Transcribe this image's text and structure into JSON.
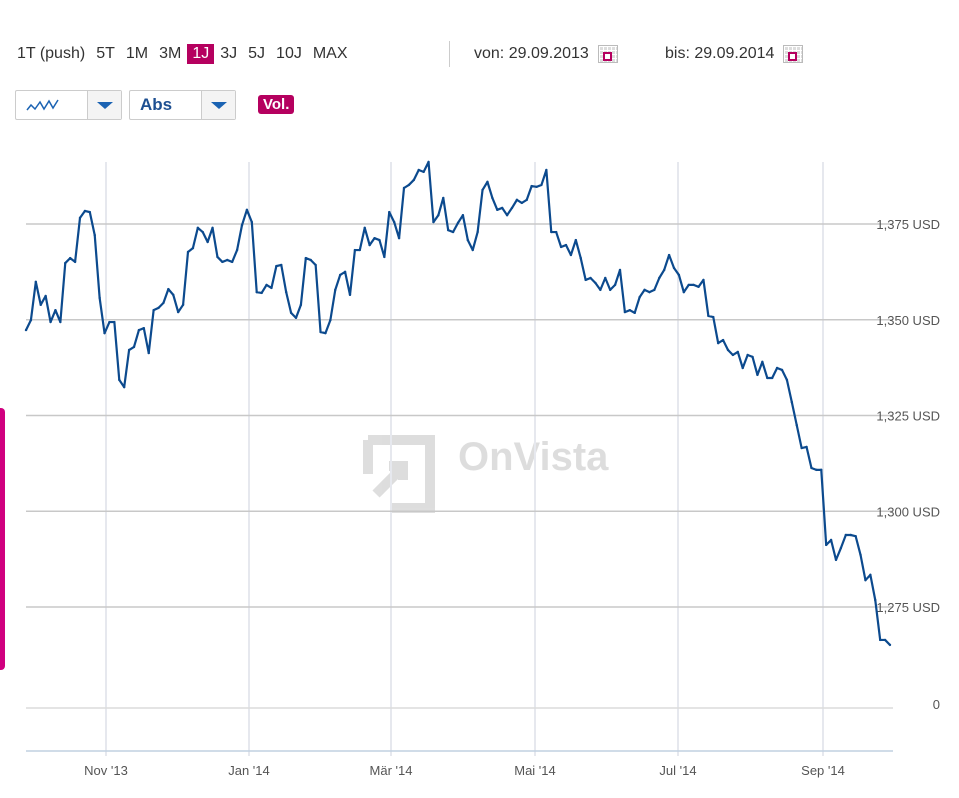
{
  "toolbar": {
    "ranges": [
      "1T (push)",
      "5T",
      "1M",
      "3M",
      "1J",
      "3J",
      "5J",
      "10J",
      "MAX"
    ],
    "active_range": "1J",
    "from_label": "von:",
    "from_date": "29.09.2013",
    "to_label": "bis:",
    "to_date": "29.09.2014",
    "chart_type_icon": "line-chart-icon",
    "mode_label": "Abs",
    "volume_label": "Vol.",
    "accent": "#b5005f"
  },
  "watermark": "OnVista",
  "chart_data": {
    "type": "line",
    "x_range": [
      "29.09.2013",
      "29.09.2014"
    ],
    "xticks": [
      "Nov '13",
      "Jan '14",
      "Mär '14",
      "Mai '14",
      "Jul '14",
      "Sep '14"
    ],
    "yticks": [
      {
        "value": 1375,
        "label": "1,375 USD"
      },
      {
        "value": 1350,
        "label": "1,350 USD"
      },
      {
        "value": 1325,
        "label": "1,325 USD"
      },
      {
        "value": 1300,
        "label": "1,300 USD"
      },
      {
        "value": 1275,
        "label": "1,275 USD"
      }
    ],
    "volume_zero_label": "0",
    "grid": true,
    "line_color": "#0c4a8e",
    "series": [
      {
        "values": [
          1347.3,
          1349.9,
          1359.9,
          1353.9,
          1356.2,
          1349.4,
          1352.5,
          1349.4,
          1364.8,
          1366.1,
          1365.1,
          1376.6,
          1378.4,
          1378.1,
          1372.1,
          1355.7,
          1346.5,
          1349.4,
          1349.4,
          1334.3,
          1332.4,
          1342.1,
          1342.9,
          1347.3,
          1347.8,
          1341.3,
          1352.5,
          1353.1,
          1354.4,
          1358.0,
          1356.5,
          1352.0,
          1353.9,
          1367.7,
          1368.7,
          1374.0,
          1372.9,
          1370.3,
          1374.0,
          1366.4,
          1365.1,
          1365.6,
          1365.1,
          1368.2,
          1374.7,
          1378.7,
          1375.5,
          1357.2,
          1357.0,
          1359.1,
          1358.3,
          1364.0,
          1364.3,
          1357.2,
          1351.8,
          1350.5,
          1353.9,
          1366.1,
          1365.6,
          1364.3,
          1346.8,
          1346.5,
          1349.9,
          1357.8,
          1361.7,
          1362.5,
          1356.5,
          1368.2,
          1368.2,
          1374.0,
          1369.5,
          1371.3,
          1370.8,
          1366.4,
          1378.1,
          1375.5,
          1371.3,
          1384.4,
          1385.2,
          1386.5,
          1389.1,
          1388.6,
          1391.2,
          1375.5,
          1377.3,
          1381.8,
          1373.4,
          1372.9,
          1375.3,
          1377.3,
          1370.8,
          1368.2,
          1372.9,
          1383.9,
          1386.0,
          1381.8,
          1378.7,
          1379.2,
          1377.3,
          1379.2,
          1381.3,
          1380.5,
          1381.3,
          1384.9,
          1384.7,
          1385.2,
          1389.1,
          1372.9,
          1372.9,
          1369.0,
          1369.5,
          1366.9,
          1370.8,
          1366.1,
          1360.4,
          1360.9,
          1359.6,
          1357.8,
          1360.9,
          1357.8,
          1359.1,
          1363.0,
          1352.0,
          1352.5,
          1351.8,
          1355.9,
          1357.8,
          1357.2,
          1357.8,
          1360.9,
          1363.0,
          1366.9,
          1363.5,
          1361.7,
          1357.2,
          1359.1,
          1359.1,
          1358.6,
          1360.4,
          1351.0,
          1350.7,
          1343.9,
          1344.7,
          1342.1,
          1340.8,
          1341.6,
          1337.4,
          1340.8,
          1340.3,
          1335.6,
          1339.0,
          1334.8,
          1334.8,
          1337.4,
          1336.9,
          1334.3,
          1328.5,
          1322.5,
          1316.5,
          1316.8,
          1311.3,
          1310.8,
          1310.8,
          1291.2,
          1292.5,
          1287.3,
          1290.4,
          1293.8,
          1293.8,
          1293.5,
          1288.6,
          1282.0,
          1283.4,
          1276.8,
          1266.4,
          1266.4,
          1265.1
        ]
      }
    ]
  }
}
